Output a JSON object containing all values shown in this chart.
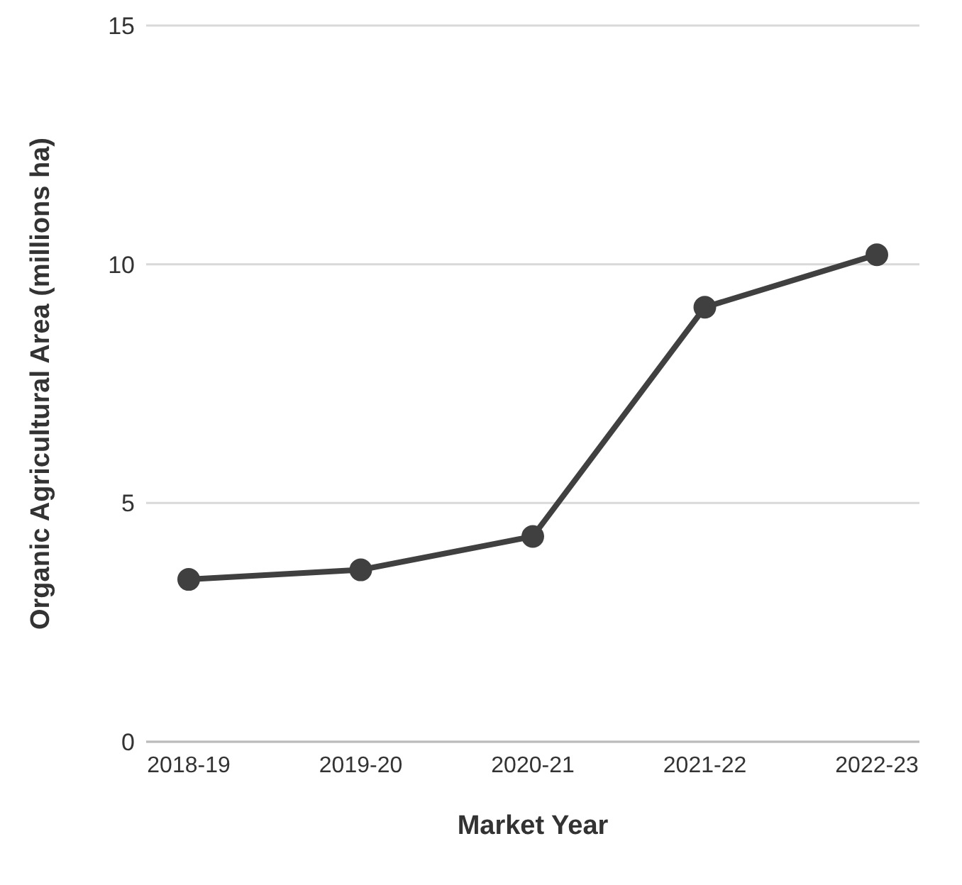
{
  "chart_data": {
    "type": "line",
    "xlabel": "Market Year",
    "ylabel": "Organic Agricultural Area (millions ha)",
    "categories": [
      "2018-19",
      "2019-20",
      "2020-21",
      "2021-22",
      "2022-23"
    ],
    "series": [
      {
        "color": "#404040",
        "values": [
          3.4,
          3.6,
          4.3,
          9.1,
          10.2
        ]
      }
    ],
    "ylim": [
      0,
      15
    ],
    "yticks": [
      0,
      5,
      10,
      15
    ],
    "grid": "y",
    "marker": "circle",
    "line_style": "solid"
  }
}
